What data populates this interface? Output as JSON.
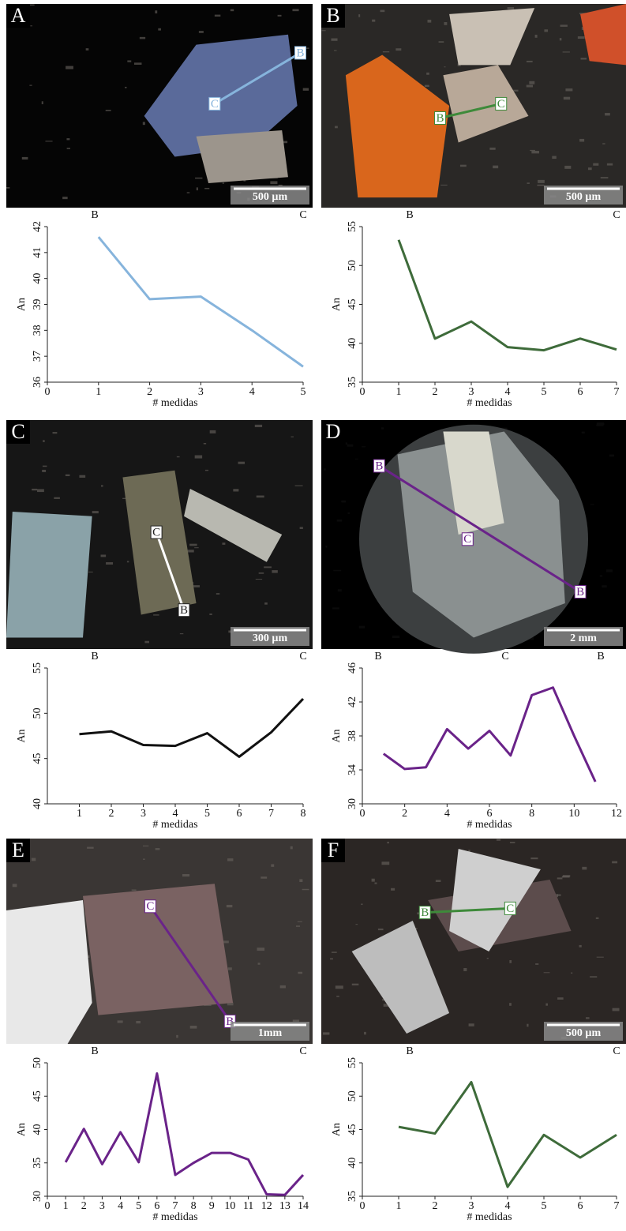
{
  "panels": [
    {
      "letter": "A",
      "scale": "500 µm",
      "markers": [
        "B",
        "C"
      ]
    },
    {
      "letter": "B",
      "scale": "500 µm",
      "markers": [
        "B",
        "C"
      ]
    },
    {
      "letter": "C",
      "scale": "300 µm",
      "markers": [
        "C",
        "B"
      ]
    },
    {
      "letter": "D",
      "scale": "2 mm",
      "markers": [
        "B",
        "C",
        "B"
      ]
    },
    {
      "letter": "E",
      "scale": "1mm",
      "markers": [
        "C",
        "B"
      ]
    },
    {
      "letter": "F",
      "scale": "500 µm",
      "markers": [
        "B",
        "C"
      ]
    }
  ],
  "chart_data": [
    {
      "type": "line",
      "profile_labels": [
        "B",
        "C"
      ],
      "y_label": "An",
      "x_label": "# medidas",
      "color": "#86b4dc",
      "x": [
        1,
        2,
        3,
        4,
        5
      ],
      "values": [
        41.6,
        39.2,
        39.3,
        38.0,
        36.6
      ],
      "xlim": [
        0,
        5
      ],
      "xticks": [
        0,
        1,
        2,
        3,
        4,
        5
      ],
      "ylim": [
        36,
        42
      ],
      "yticks": [
        36,
        37,
        38,
        39,
        40,
        41,
        42
      ]
    },
    {
      "type": "line",
      "profile_labels": [
        "B",
        "C"
      ],
      "y_label": "An",
      "x_label": "# medidas",
      "color": "#3e6b3a",
      "x": [
        1,
        2,
        3,
        4,
        5,
        6,
        7
      ],
      "values": [
        53.3,
        40.6,
        42.8,
        39.5,
        39.1,
        40.6,
        39.2
      ],
      "xlim": [
        0,
        7
      ],
      "xticks": [
        0,
        1,
        2,
        3,
        4,
        5,
        6,
        7
      ],
      "ylim": [
        35,
        55
      ],
      "yticks": [
        35,
        40,
        45,
        50,
        55
      ]
    },
    {
      "type": "line",
      "profile_labels": [
        "B",
        "C"
      ],
      "y_label": "An",
      "x_label": "# medidas",
      "color": "#111111",
      "x": [
        1,
        2,
        3,
        4,
        5,
        6,
        7,
        8
      ],
      "values": [
        47.7,
        48.0,
        46.5,
        46.4,
        47.8,
        45.2,
        47.9,
        51.6
      ],
      "xlim": [
        0,
        8
      ],
      "xticks": [
        1,
        2,
        3,
        4,
        5,
        6,
        7,
        8
      ],
      "ylim": [
        40,
        55
      ],
      "yticks": [
        40,
        45,
        50,
        55
      ]
    },
    {
      "type": "line",
      "profile_labels": [
        "B",
        "C",
        "B"
      ],
      "y_label": "An",
      "x_label": "# medidas",
      "color": "#6a2389",
      "x": [
        1,
        2,
        3,
        4,
        5,
        6,
        7,
        8,
        9,
        10,
        11
      ],
      "values": [
        35.9,
        34.1,
        34.3,
        38.8,
        36.5,
        38.6,
        35.7,
        42.8,
        43.7,
        38.0,
        32.6
      ],
      "xlim": [
        0,
        12
      ],
      "xticks": [
        0,
        2,
        4,
        6,
        8,
        10,
        12
      ],
      "ylim": [
        30,
        46
      ],
      "yticks": [
        30,
        34,
        38,
        42,
        46
      ]
    },
    {
      "type": "line",
      "profile_labels": [
        "B",
        "C"
      ],
      "y_label": "An",
      "x_label": "# medidas",
      "color": "#6a2389",
      "x": [
        1,
        2,
        3,
        4,
        5,
        6,
        7,
        8,
        9,
        10,
        11,
        12,
        13,
        14
      ],
      "values": [
        35.1,
        40.1,
        34.8,
        39.6,
        35.1,
        48.4,
        33.2,
        35.0,
        36.5,
        36.5,
        35.5,
        30.3,
        30.2,
        33.2
      ],
      "xlim": [
        0,
        14
      ],
      "xticks": [
        0,
        1,
        2,
        3,
        4,
        5,
        6,
        7,
        8,
        9,
        10,
        11,
        12,
        13,
        14
      ],
      "ylim": [
        30,
        50
      ],
      "yticks": [
        30,
        35,
        40,
        45,
        50
      ]
    },
    {
      "type": "line",
      "profile_labels": [
        "B",
        "C"
      ],
      "y_label": "An",
      "x_label": "# medidas",
      "color": "#3e6b3a",
      "x": [
        1,
        2,
        3,
        4,
        5,
        6,
        7
      ],
      "values": [
        45.4,
        44.4,
        52.1,
        36.4,
        44.2,
        40.8,
        44.2
      ],
      "xlim": [
        0,
        7
      ],
      "xticks": [
        0,
        1,
        2,
        3,
        4,
        5,
        6,
        7
      ],
      "ylim": [
        35,
        55
      ],
      "yticks": [
        35,
        40,
        45,
        50,
        55
      ]
    }
  ]
}
